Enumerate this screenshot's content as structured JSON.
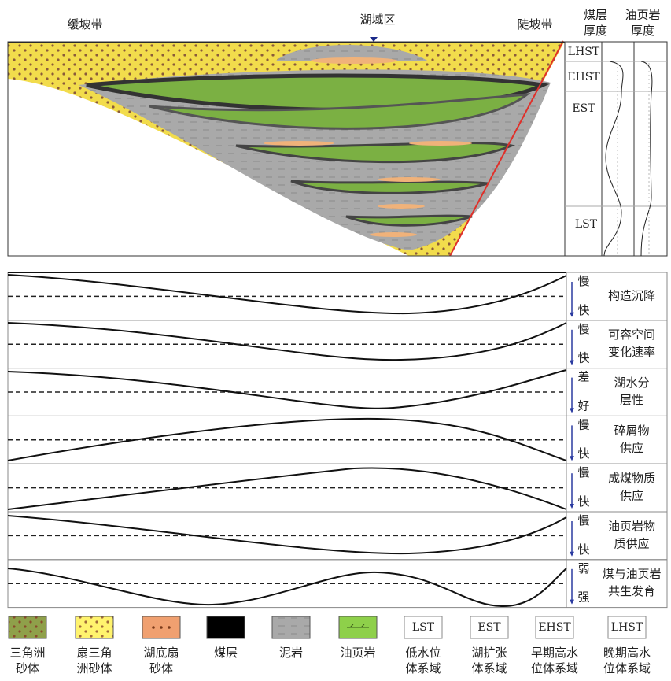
{
  "header": {
    "zones": [
      "缓坡带",
      "湖域区",
      "陡坡带"
    ],
    "columns": [
      [
        "煤层",
        "厚度"
      ],
      [
        "油页岩",
        "厚度"
      ]
    ]
  },
  "tracts": [
    "LHST",
    "EHST",
    "EST",
    "LST"
  ],
  "rows": [
    {
      "top": "慢",
      "bottom": "快",
      "label": [
        "构造沉降"
      ]
    },
    {
      "top": "慢",
      "bottom": "快",
      "label": [
        "可容空间",
        "变化速率"
      ]
    },
    {
      "top": "差",
      "bottom": "好",
      "label": [
        "湖水分",
        "层性"
      ]
    },
    {
      "top": "慢",
      "bottom": "快",
      "label": [
        "碎屑物",
        "供应"
      ]
    },
    {
      "top": "慢",
      "bottom": "快",
      "label": [
        "成煤物质",
        "供应"
      ]
    },
    {
      "top": "慢",
      "bottom": "快",
      "label": [
        "油页岩物",
        "质供应"
      ]
    },
    {
      "top": "弱",
      "bottom": "强",
      "label": [
        "煤与油页岩",
        "共生发育"
      ]
    }
  ],
  "legend": [
    {
      "label": [
        "三角洲",
        "砂体"
      ]
    },
    {
      "label": [
        "扇三角",
        "洲砂体"
      ]
    },
    {
      "label": [
        "湖底扇",
        "砂体"
      ]
    },
    {
      "label": [
        "煤层"
      ]
    },
    {
      "label": [
        "泥岩"
      ]
    },
    {
      "label": [
        "油页岩"
      ]
    },
    {
      "code": "LST",
      "label": [
        "低水位",
        "体系域"
      ]
    },
    {
      "code": "EST",
      "label": [
        "湖扩张",
        "体系域"
      ]
    },
    {
      "code": "EHST",
      "label": [
        "早期高水",
        "位体系域"
      ]
    },
    {
      "code": "LHST",
      "label": [
        "晚期高水",
        "位体系域"
      ]
    }
  ]
}
